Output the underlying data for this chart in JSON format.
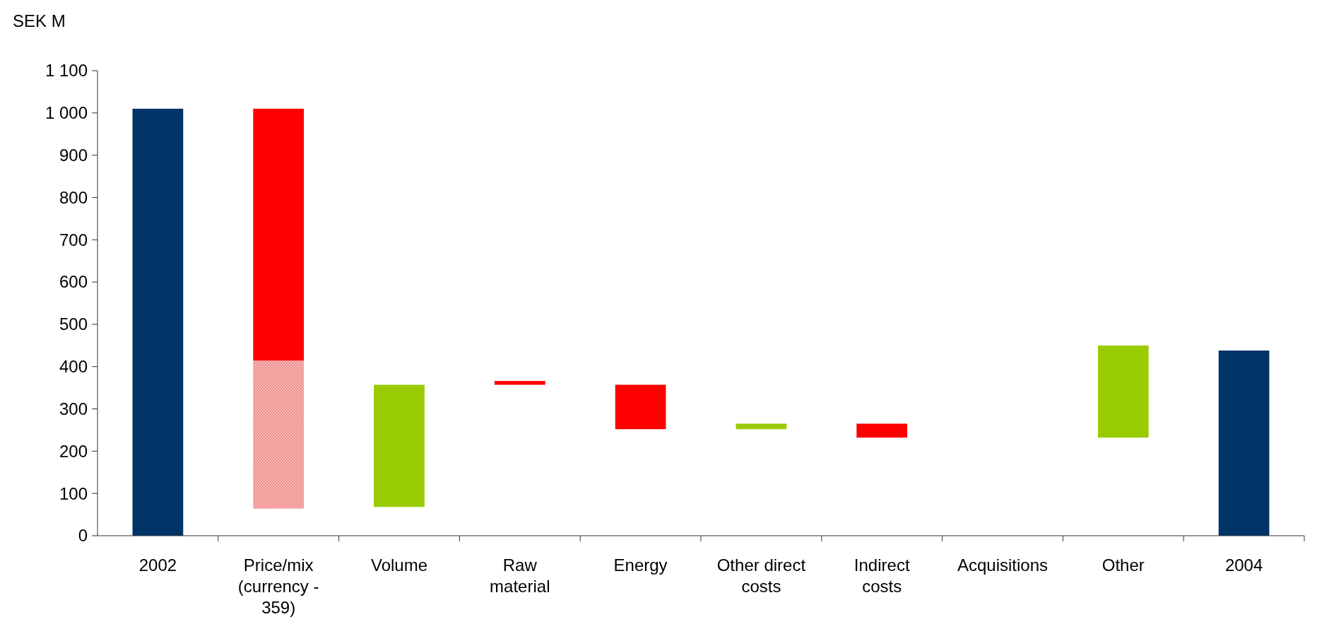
{
  "chart_data": {
    "type": "bar",
    "ylabel": "SEK M",
    "categories": [
      "2002",
      "Price/mix (currency - 359)",
      "Volume",
      "Raw material",
      "Energy",
      "Other direct costs",
      "Indirect costs",
      "Acquisitions",
      "Other",
      "2004"
    ],
    "series": [
      {
        "values": [
          1010,
          596,
          289,
          9,
          105,
          13,
          33,
          null,
          218,
          438
        ],
        "base": [
          0,
          414,
          68,
          357,
          252,
          252,
          232,
          null,
          232,
          0
        ],
        "colors": [
          "#003366",
          "#ff0000",
          "#99cc00",
          "#ff0000",
          "#ff0000",
          "#99cc00",
          "#ff0000",
          null,
          "#99cc00",
          "#003366"
        ]
      },
      {
        "values": [
          null,
          350,
          null,
          null,
          null,
          null,
          null,
          null,
          null,
          null
        ],
        "base": [
          null,
          64,
          null,
          null,
          null,
          null,
          null,
          null,
          null,
          null
        ],
        "color": "#f08080"
      }
    ],
    "ylim": [
      0,
      1100
    ],
    "yticks": [
      0,
      {
        "value": 100,
        "label": "100"
      },
      200,
      300,
      400,
      500,
      600,
      700,
      800,
      900,
      {
        "value": 1000,
        "label": "1 000"
      },
      {
        "value": 1100,
        "label": "1 100"
      }
    ],
    "grid": false
  }
}
